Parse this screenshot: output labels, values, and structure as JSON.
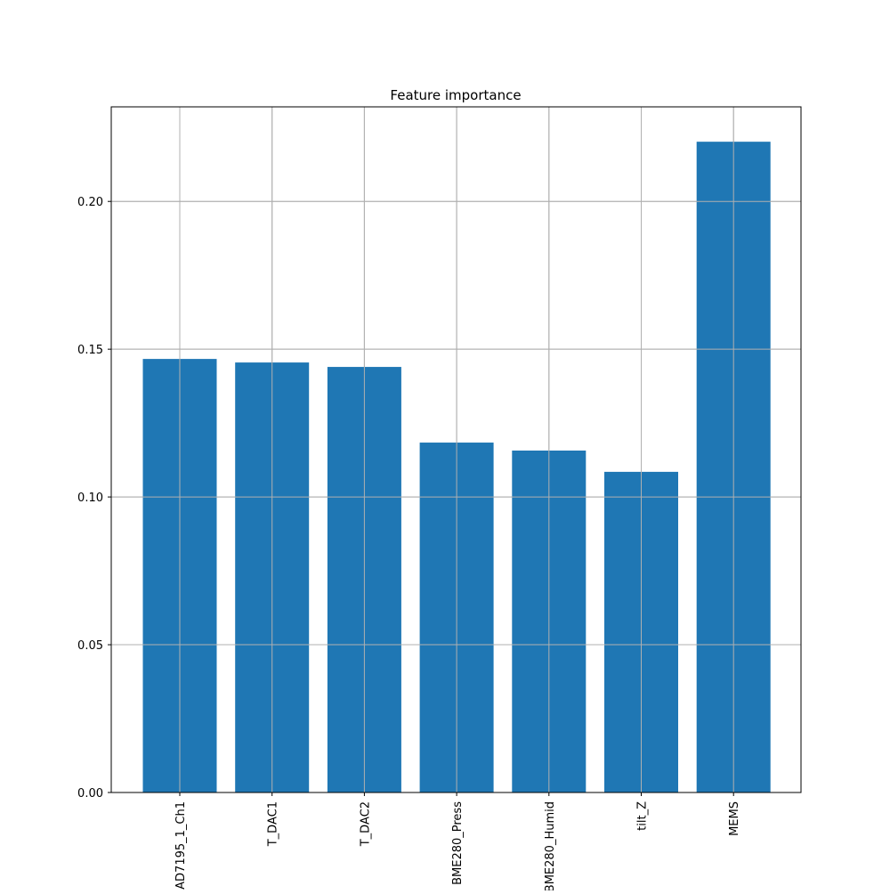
{
  "chart_data": {
    "type": "bar",
    "title": "Feature importance",
    "xlabel": "",
    "ylabel": "",
    "categories": [
      "AD7195_1_Ch1",
      "T_DAC1",
      "T_DAC2",
      "BME280_Press",
      "BME280_Humid",
      "tilt_Z",
      "MEMS"
    ],
    "values": [
      0.1467,
      0.1455,
      0.144,
      0.1184,
      0.1157,
      0.1085,
      0.2202
    ],
    "ylim": [
      0,
      0.232
    ],
    "yticks": [
      0.0,
      0.05,
      0.1,
      0.15,
      0.2
    ],
    "ytick_labels": [
      "0.00",
      "0.05",
      "0.10",
      "0.15",
      "0.20"
    ],
    "grid": true,
    "legend": "none",
    "bar_color": "#1f77b4",
    "grid_color": "#b0b0b0",
    "axis_color": "#000000"
  }
}
